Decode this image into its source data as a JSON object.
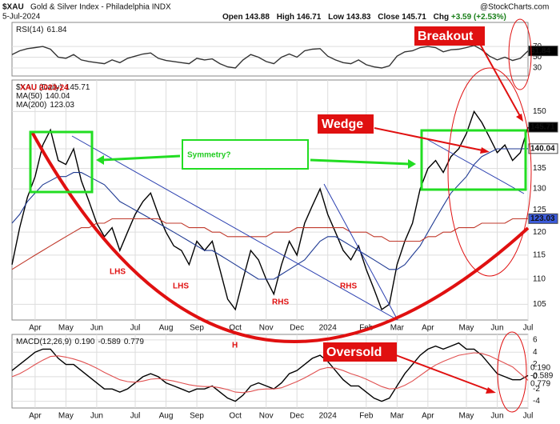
{
  "header": {
    "symbol": "$XAU",
    "name": "Gold & Silver Index - Philadelphia INDX",
    "date": "5-Jul-2024",
    "quote": [
      {
        "label": "Open",
        "value": "143.88"
      },
      {
        "label": "High",
        "value": "146.71"
      },
      {
        "label": "Low",
        "value": "143.83"
      },
      {
        "label": "Close",
        "value": "145.71"
      },
      {
        "label": "Chg",
        "value": "+3.59 (+2.53%)"
      }
    ],
    "watermark": "@StockCharts.com"
  },
  "chart_data": [
    {
      "type": "line",
      "grid": true,
      "ylim": [
        15,
        115
      ],
      "yticks": [
        30,
        50,
        70
      ],
      "series": [
        {
          "name": "RSI(14)",
          "color": "#333333",
          "values": [
            55,
            62,
            66,
            68,
            70,
            65,
            50,
            48,
            55,
            45,
            42,
            40,
            38,
            45,
            40,
            48,
            52,
            56,
            58,
            48,
            44,
            42,
            40,
            38,
            48,
            45,
            47,
            38,
            32,
            30,
            45,
            55,
            50,
            42,
            38,
            50,
            56,
            50,
            62,
            65,
            66,
            52,
            45,
            40,
            38,
            45,
            36,
            32,
            30,
            34,
            52,
            60,
            62,
            68,
            70,
            68,
            60,
            64,
            65,
            68,
            72,
            64,
            52,
            45,
            50,
            44,
            48,
            61.84
          ]
        }
      ]
    },
    {
      "type": "line",
      "grid": true,
      "log_scale": true,
      "ylim": [
        102,
        159
      ],
      "yticks": [
        105,
        110,
        115,
        120,
        125,
        130,
        135,
        140,
        150
      ],
      "categories": [
        null,
        null,
        null,
        "Apr",
        null,
        null,
        null,
        "May",
        null,
        null,
        null,
        "Jun",
        null,
        null,
        null,
        null,
        "Jul",
        null,
        null,
        null,
        "Aug",
        null,
        null,
        null,
        "Sep",
        null,
        null,
        null,
        null,
        "Oct",
        null,
        null,
        null,
        "Nov",
        null,
        null,
        null,
        "Dec",
        null,
        null,
        null,
        "2024",
        null,
        null,
        null,
        null,
        "Feb",
        null,
        null,
        null,
        "Mar",
        null,
        null,
        null,
        "Apr",
        null,
        null,
        null,
        null,
        "May",
        null,
        null,
        null,
        "Jun",
        null,
        null,
        null,
        "Jul"
      ],
      "series": [
        {
          "name": "$XAU (Daily)",
          "color": "#000000",
          "values": [
            113,
            121,
            128,
            133,
            141,
            145,
            137,
            136,
            140,
            132,
            127,
            122,
            119,
            121,
            116,
            120,
            124,
            127,
            129,
            124,
            120,
            117,
            116,
            113,
            118,
            116,
            118,
            112,
            106,
            104,
            110,
            116,
            114,
            110,
            107,
            113,
            118,
            115,
            122,
            126,
            130,
            124,
            120,
            116,
            114,
            117,
            112,
            108,
            104,
            105,
            113,
            118,
            122,
            130,
            135,
            137,
            134,
            138,
            140,
            144,
            150,
            147,
            143,
            139,
            141,
            137,
            139,
            145.71
          ]
        },
        {
          "name": "MA(50)",
          "color": "#1f3a93",
          "values": [
            122,
            124,
            127,
            129,
            131,
            132,
            133,
            133,
            134,
            134,
            133,
            132,
            131,
            129,
            127,
            126,
            125,
            124,
            123,
            122,
            121,
            120,
            119,
            118,
            117,
            116,
            116,
            115,
            114,
            113,
            112,
            111,
            110,
            110,
            110,
            111,
            112,
            113,
            114,
            116,
            118,
            119,
            119,
            118,
            117,
            116,
            115,
            114,
            113,
            112,
            112,
            113,
            115,
            117,
            120,
            123,
            126,
            129,
            131,
            133,
            136,
            138,
            139,
            140,
            140,
            140,
            140,
            140.04
          ]
        },
        {
          "name": "MA(200)",
          "color": "#c0392b",
          "values": [
            112,
            113,
            114,
            115,
            116,
            117,
            118,
            119,
            120,
            121,
            121,
            122,
            122,
            123,
            123,
            123,
            123,
            123,
            123,
            123,
            122,
            122,
            122,
            121,
            121,
            121,
            120,
            120,
            119,
            119,
            119,
            119,
            119,
            119,
            120,
            120,
            120,
            121,
            121,
            121,
            121,
            121,
            121,
            121,
            120,
            120,
            120,
            119,
            119,
            118,
            118,
            118,
            118,
            118,
            119,
            119,
            120,
            120,
            121,
            121,
            121,
            122,
            122,
            122,
            122,
            123,
            123,
            123.03
          ]
        }
      ],
      "annotations": [
        "XAU 2023-24",
        "Breakout",
        "Wedge",
        "Symmetry?",
        "LHS",
        "LHS",
        "RHS",
        "RHS"
      ]
    },
    {
      "type": "line",
      "grid": true,
      "ylim": [
        -5.1,
        6.9
      ],
      "yticks": [
        -4,
        -2,
        0,
        2,
        4,
        6
      ],
      "categories": [
        null,
        null,
        null,
        "Apr",
        null,
        null,
        null,
        "May",
        null,
        null,
        null,
        "Jun",
        null,
        null,
        null,
        null,
        "Jul",
        null,
        null,
        null,
        "Aug",
        null,
        null,
        null,
        "Sep",
        null,
        null,
        null,
        null,
        "Oct",
        null,
        null,
        null,
        "Nov",
        null,
        null,
        null,
        "Dec",
        null,
        null,
        null,
        "2024",
        null,
        null,
        null,
        null,
        "Feb",
        null,
        null,
        null,
        "Mar",
        null,
        null,
        null,
        "Apr",
        null,
        null,
        null,
        null,
        "May",
        null,
        null,
        null,
        "Jun",
        null,
        null,
        null,
        "Jul"
      ],
      "series": [
        {
          "name": "MACD(12,26,9)",
          "color": "#000000",
          "values": [
            1,
            2,
            3,
            4,
            4.5,
            4.5,
            3,
            2,
            2,
            1,
            0,
            -1,
            -2,
            -2,
            -2.5,
            -2,
            -1,
            0,
            0.5,
            0,
            -1,
            -1.5,
            -2,
            -2.5,
            -2,
            -2,
            -1.5,
            -2.5,
            -3.5,
            -4,
            -3,
            -1.5,
            -1,
            -1.5,
            -2,
            -1,
            0.5,
            1,
            2,
            3,
            3.5,
            2.5,
            1,
            -0.5,
            -1.5,
            -1.5,
            -2.5,
            -3.5,
            -4,
            -3.5,
            -1.5,
            0.5,
            2,
            3.5,
            4.5,
            5,
            4.5,
            5,
            5.5,
            4.5,
            4.5,
            3.5,
            2,
            0.5,
            0,
            -0.5,
            -0.5,
            0.19
          ]
        },
        {
          "color": "#e05050",
          "values": [
            0,
            0.5,
            1.2,
            2,
            2.7,
            3.3,
            3.4,
            3.2,
            2.9,
            2.5,
            2,
            1.4,
            0.7,
            0.1,
            -0.5,
            -0.8,
            -0.9,
            -0.7,
            -0.4,
            -0.3,
            -0.5,
            -0.7,
            -1,
            -1.3,
            -1.5,
            -1.6,
            -1.6,
            -1.8,
            -2.1,
            -2.5,
            -2.6,
            -2.4,
            -2.1,
            -2,
            -2,
            -1.8,
            -1.3,
            -0.8,
            -0.2,
            0.5,
            1.2,
            1.5,
            1.4,
            1,
            0.5,
            0.1,
            -0.4,
            -1,
            -1.6,
            -2,
            -1.9,
            -1.4,
            -0.7,
            0.2,
            1.1,
            1.9,
            2.5,
            3,
            3.5,
            3.7,
            3.9,
            3.8,
            3.4,
            2.8,
            2.2,
            1.6,
            0.5,
            -0.589
          ]
        }
      ],
      "readout": [
        {
          "value": 0.19,
          "label": "0.190"
        },
        {
          "value": -0.589,
          "label": "-0.589"
        },
        {
          "value": 0.779,
          "label": "0.779"
        }
      ],
      "annotations": [
        "H",
        "Oversold"
      ]
    }
  ]
}
